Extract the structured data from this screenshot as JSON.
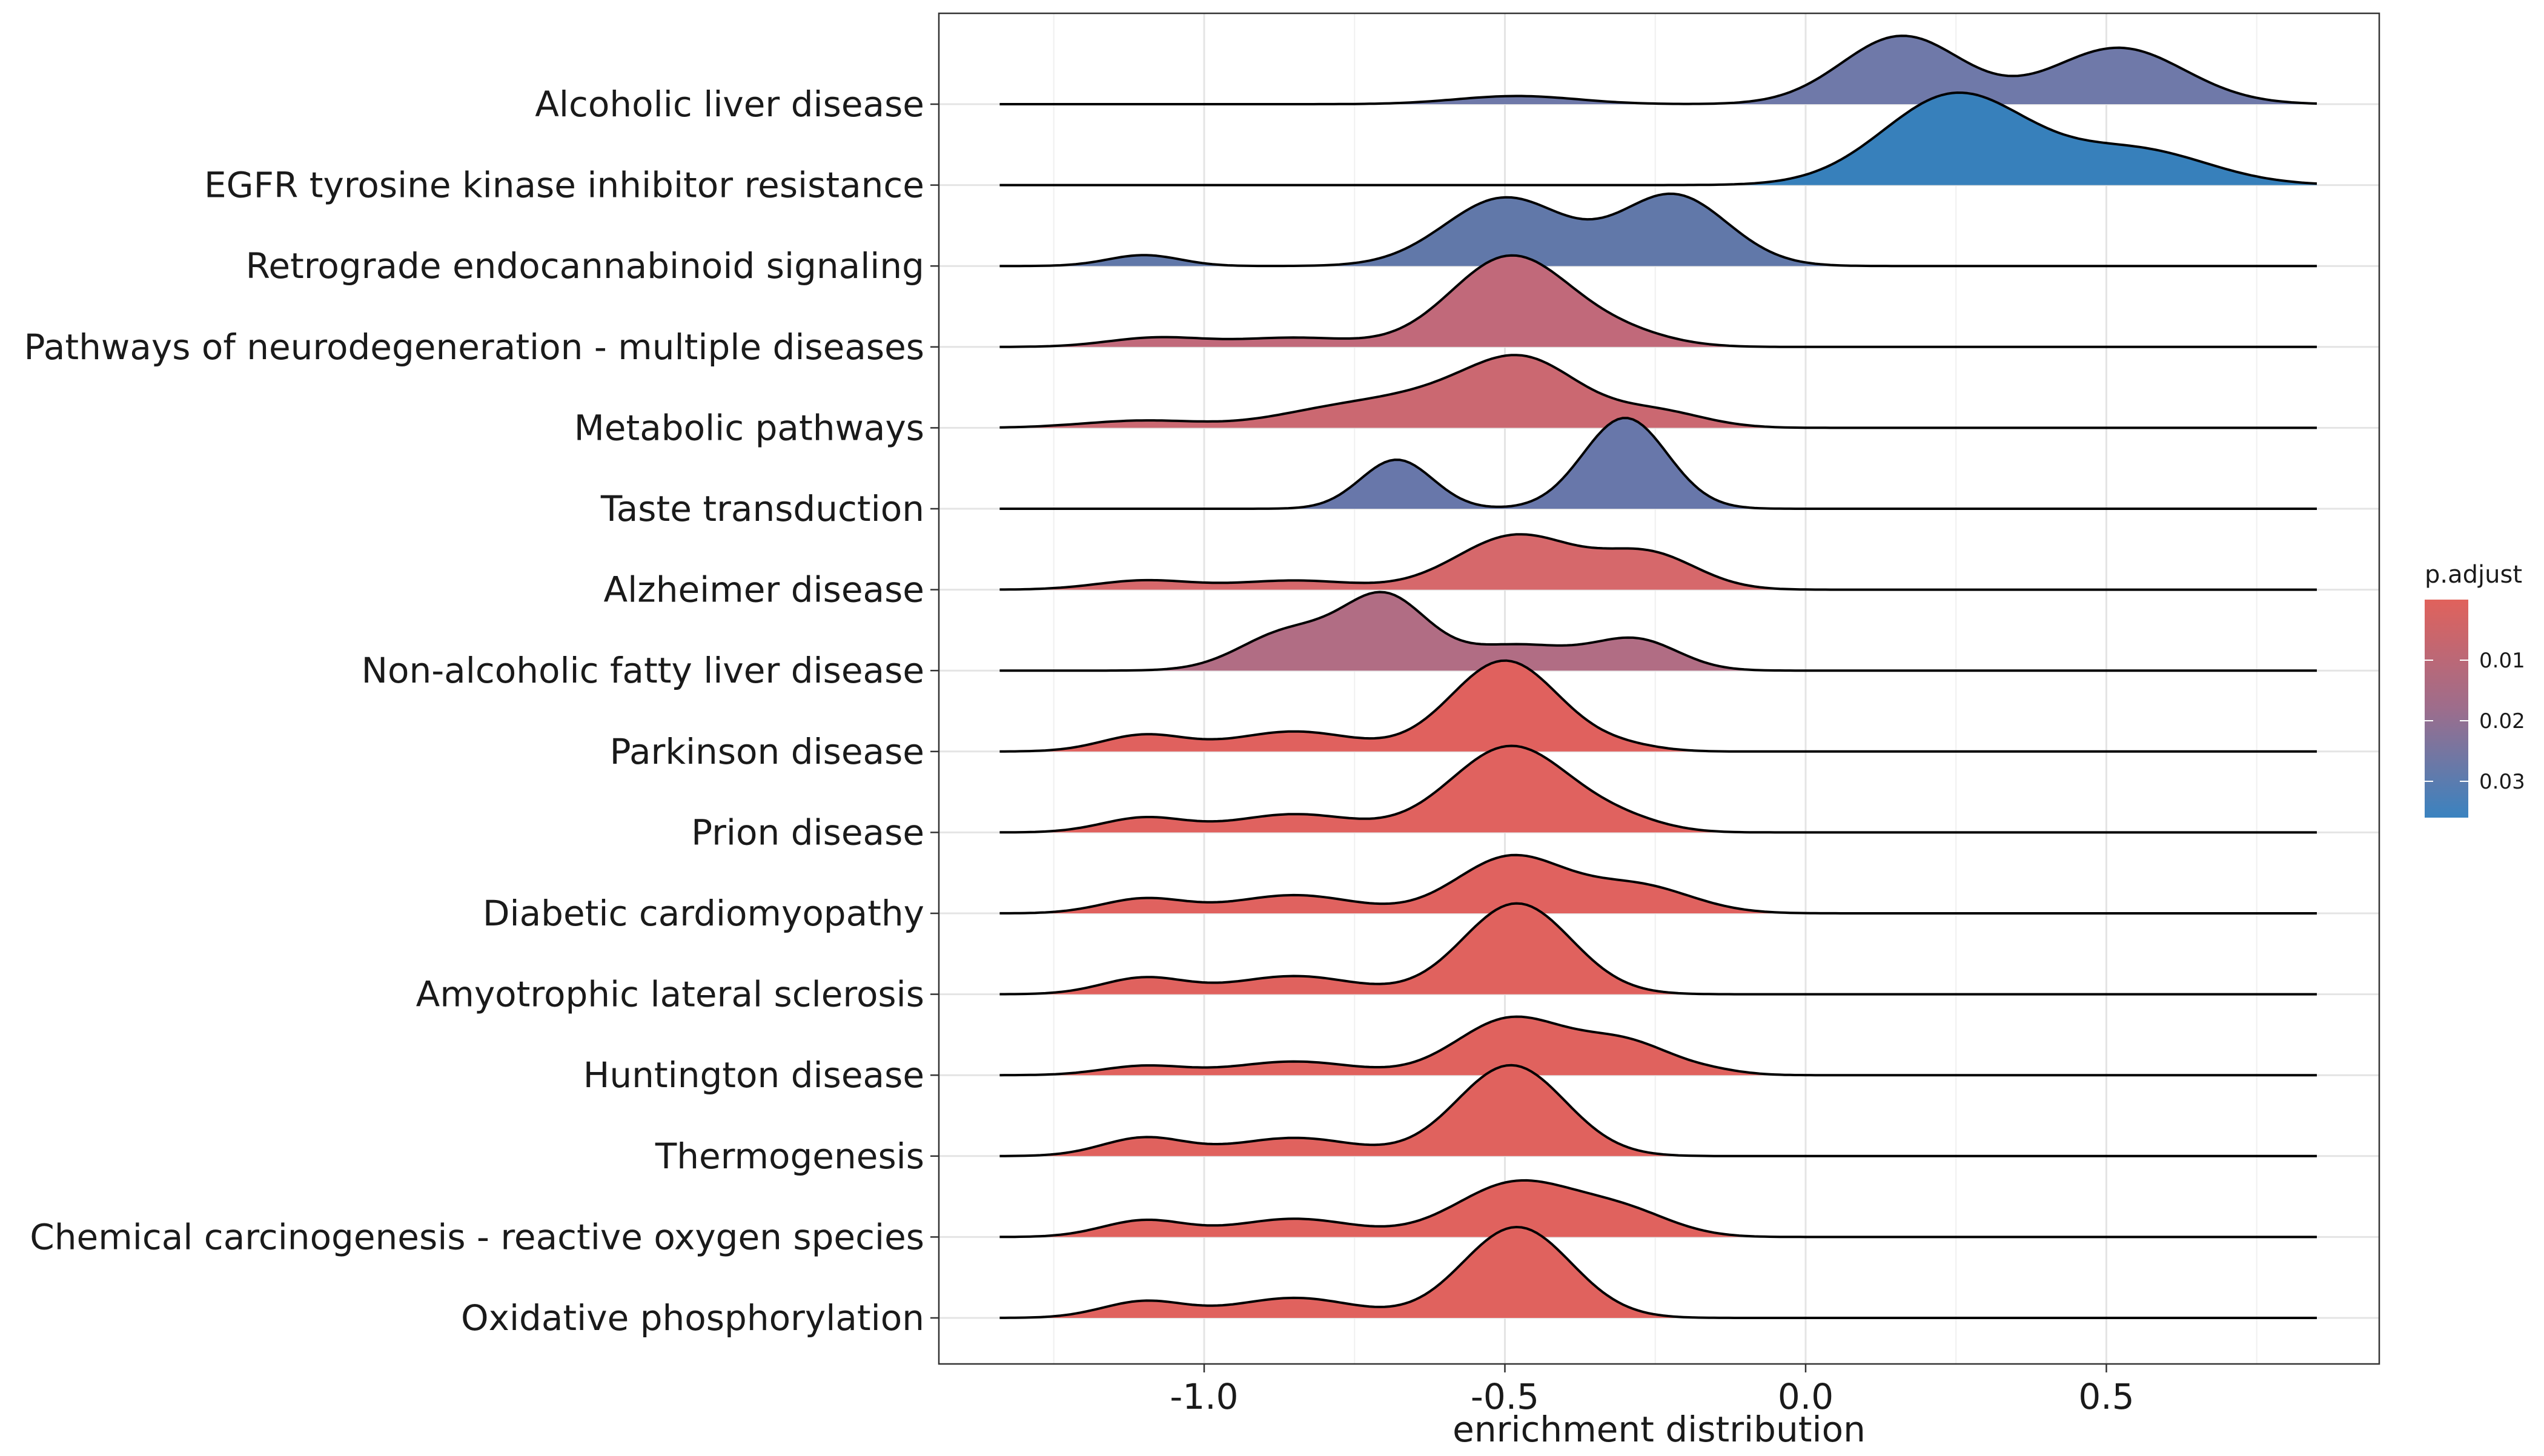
{
  "chart_data": {
    "type": "ridgeline",
    "title": "",
    "xlabel": "enrichment distribution",
    "ylabel": "",
    "xlim": [
      -1.4,
      1.0
    ],
    "x_ticks": [
      -1.0,
      -0.5,
      0.0,
      0.5
    ],
    "x_tick_labels": [
      "-1.0",
      "-0.5",
      "0.0",
      "0.5"
    ],
    "x_range_drawn": [
      -1.34,
      0.85
    ],
    "grid": true,
    "legend": {
      "title": "p.adjust",
      "position": "right",
      "type": "colorbar",
      "ticks": [
        0.01,
        0.02,
        0.03
      ],
      "tick_labels": [
        "0.01",
        "0.02",
        "0.03"
      ],
      "range": [
        0.0,
        0.036
      ],
      "color_low": "#E0625C",
      "color_high": "#3A83C0"
    },
    "series": [
      {
        "name": "Alcoholic liver disease",
        "p_adjust": 0.031,
        "color": "#6F79A9",
        "components": [
          [
            -0.48,
            0.1,
            0.09
          ],
          [
            0.16,
            0.1,
            0.75
          ],
          [
            0.52,
            0.11,
            0.62
          ]
        ]
      },
      {
        "name": "EGFR tyrosine kinase inhibitor resistance",
        "p_adjust": 0.035,
        "color": "#3780BB",
        "components": [
          [
            0.25,
            0.12,
            1.0
          ],
          [
            0.55,
            0.12,
            0.38
          ]
        ]
      },
      {
        "name": "Retrograde endocannabinoid signaling",
        "p_adjust": 0.032,
        "color": "#6178A9",
        "components": [
          [
            -1.1,
            0.06,
            0.12
          ],
          [
            -0.5,
            0.1,
            0.75
          ],
          [
            -0.22,
            0.09,
            0.78
          ]
        ]
      },
      {
        "name": "Pathways of neurodegeneration - multiple diseases",
        "p_adjust": 0.02,
        "color": "#C1697A",
        "components": [
          [
            -1.08,
            0.08,
            0.1
          ],
          [
            -0.85,
            0.1,
            0.1
          ],
          [
            -0.49,
            0.1,
            1.0
          ],
          [
            -0.3,
            0.08,
            0.12
          ]
        ]
      },
      {
        "name": "Metabolic pathways",
        "p_adjust": 0.016,
        "color": "#CB6871",
        "components": [
          [
            -1.1,
            0.1,
            0.08
          ],
          [
            -0.8,
            0.1,
            0.15
          ],
          [
            -0.6,
            0.12,
            0.35
          ],
          [
            -0.46,
            0.09,
            0.6
          ],
          [
            -0.25,
            0.08,
            0.18
          ]
        ]
      },
      {
        "name": "Taste transduction",
        "p_adjust": 0.03,
        "color": "#6877AA",
        "components": [
          [
            -0.68,
            0.06,
            0.54
          ],
          [
            -0.3,
            0.07,
            1.0
          ]
        ]
      },
      {
        "name": "Alzheimer disease",
        "p_adjust": 0.012,
        "color": "#D6686B",
        "components": [
          [
            -1.1,
            0.08,
            0.1
          ],
          [
            -0.85,
            0.1,
            0.1
          ],
          [
            -0.48,
            0.1,
            0.6
          ],
          [
            -0.26,
            0.08,
            0.38
          ]
        ]
      },
      {
        "name": "Non-alcoholic fatty liver disease",
        "p_adjust": 0.022,
        "color": "#B16D84",
        "components": [
          [
            -0.86,
            0.08,
            0.42
          ],
          [
            -0.7,
            0.07,
            0.78
          ],
          [
            -0.48,
            0.1,
            0.28
          ],
          [
            -0.28,
            0.07,
            0.32
          ]
        ]
      },
      {
        "name": "Parkinson disease",
        "p_adjust": 0.004,
        "color": "#E0615E",
        "components": [
          [
            -1.1,
            0.07,
            0.18
          ],
          [
            -0.85,
            0.1,
            0.22
          ],
          [
            -0.5,
            0.09,
            1.0
          ],
          [
            -0.3,
            0.06,
            0.05
          ]
        ]
      },
      {
        "name": "Prion disease",
        "p_adjust": 0.006,
        "color": "#E0625F",
        "components": [
          [
            -1.1,
            0.07,
            0.16
          ],
          [
            -0.85,
            0.1,
            0.2
          ],
          [
            -0.49,
            0.1,
            0.95
          ],
          [
            -0.3,
            0.07,
            0.1
          ]
        ]
      },
      {
        "name": "Diabetic cardiomyopathy",
        "p_adjust": 0.005,
        "color": "#E0625F",
        "components": [
          [
            -1.1,
            0.07,
            0.16
          ],
          [
            -0.85,
            0.1,
            0.2
          ],
          [
            -0.49,
            0.09,
            0.62
          ],
          [
            -0.28,
            0.09,
            0.3
          ]
        ]
      },
      {
        "name": "Amyotrophic lateral sclerosis",
        "p_adjust": 0.004,
        "color": "#E0625E",
        "components": [
          [
            -1.1,
            0.07,
            0.18
          ],
          [
            -0.85,
            0.1,
            0.2
          ],
          [
            -0.48,
            0.09,
            1.0
          ]
        ]
      },
      {
        "name": "Huntington disease",
        "p_adjust": 0.004,
        "color": "#E0625E",
        "components": [
          [
            -1.1,
            0.07,
            0.1
          ],
          [
            -0.85,
            0.1,
            0.15
          ],
          [
            -0.49,
            0.09,
            0.62
          ],
          [
            -0.3,
            0.08,
            0.35
          ],
          [
            -0.15,
            0.05,
            0.03
          ]
        ]
      },
      {
        "name": "Thermogenesis",
        "p_adjust": 0.004,
        "color": "#E0625E",
        "components": [
          [
            -1.1,
            0.07,
            0.2
          ],
          [
            -0.85,
            0.1,
            0.2
          ],
          [
            -0.49,
            0.09,
            1.0
          ]
        ]
      },
      {
        "name": "Chemical carcinogenesis - reactive oxygen species",
        "p_adjust": 0.004,
        "color": "#E0625E",
        "components": [
          [
            -1.1,
            0.07,
            0.18
          ],
          [
            -0.85,
            0.1,
            0.2
          ],
          [
            -0.48,
            0.1,
            0.6
          ],
          [
            -0.3,
            0.08,
            0.25
          ]
        ]
      },
      {
        "name": "Oxidative phosphorylation",
        "p_adjust": 0.004,
        "color": "#E0625E",
        "components": [
          [
            -1.1,
            0.07,
            0.18
          ],
          [
            -0.85,
            0.1,
            0.22
          ],
          [
            -0.48,
            0.09,
            1.0
          ]
        ]
      }
    ]
  }
}
